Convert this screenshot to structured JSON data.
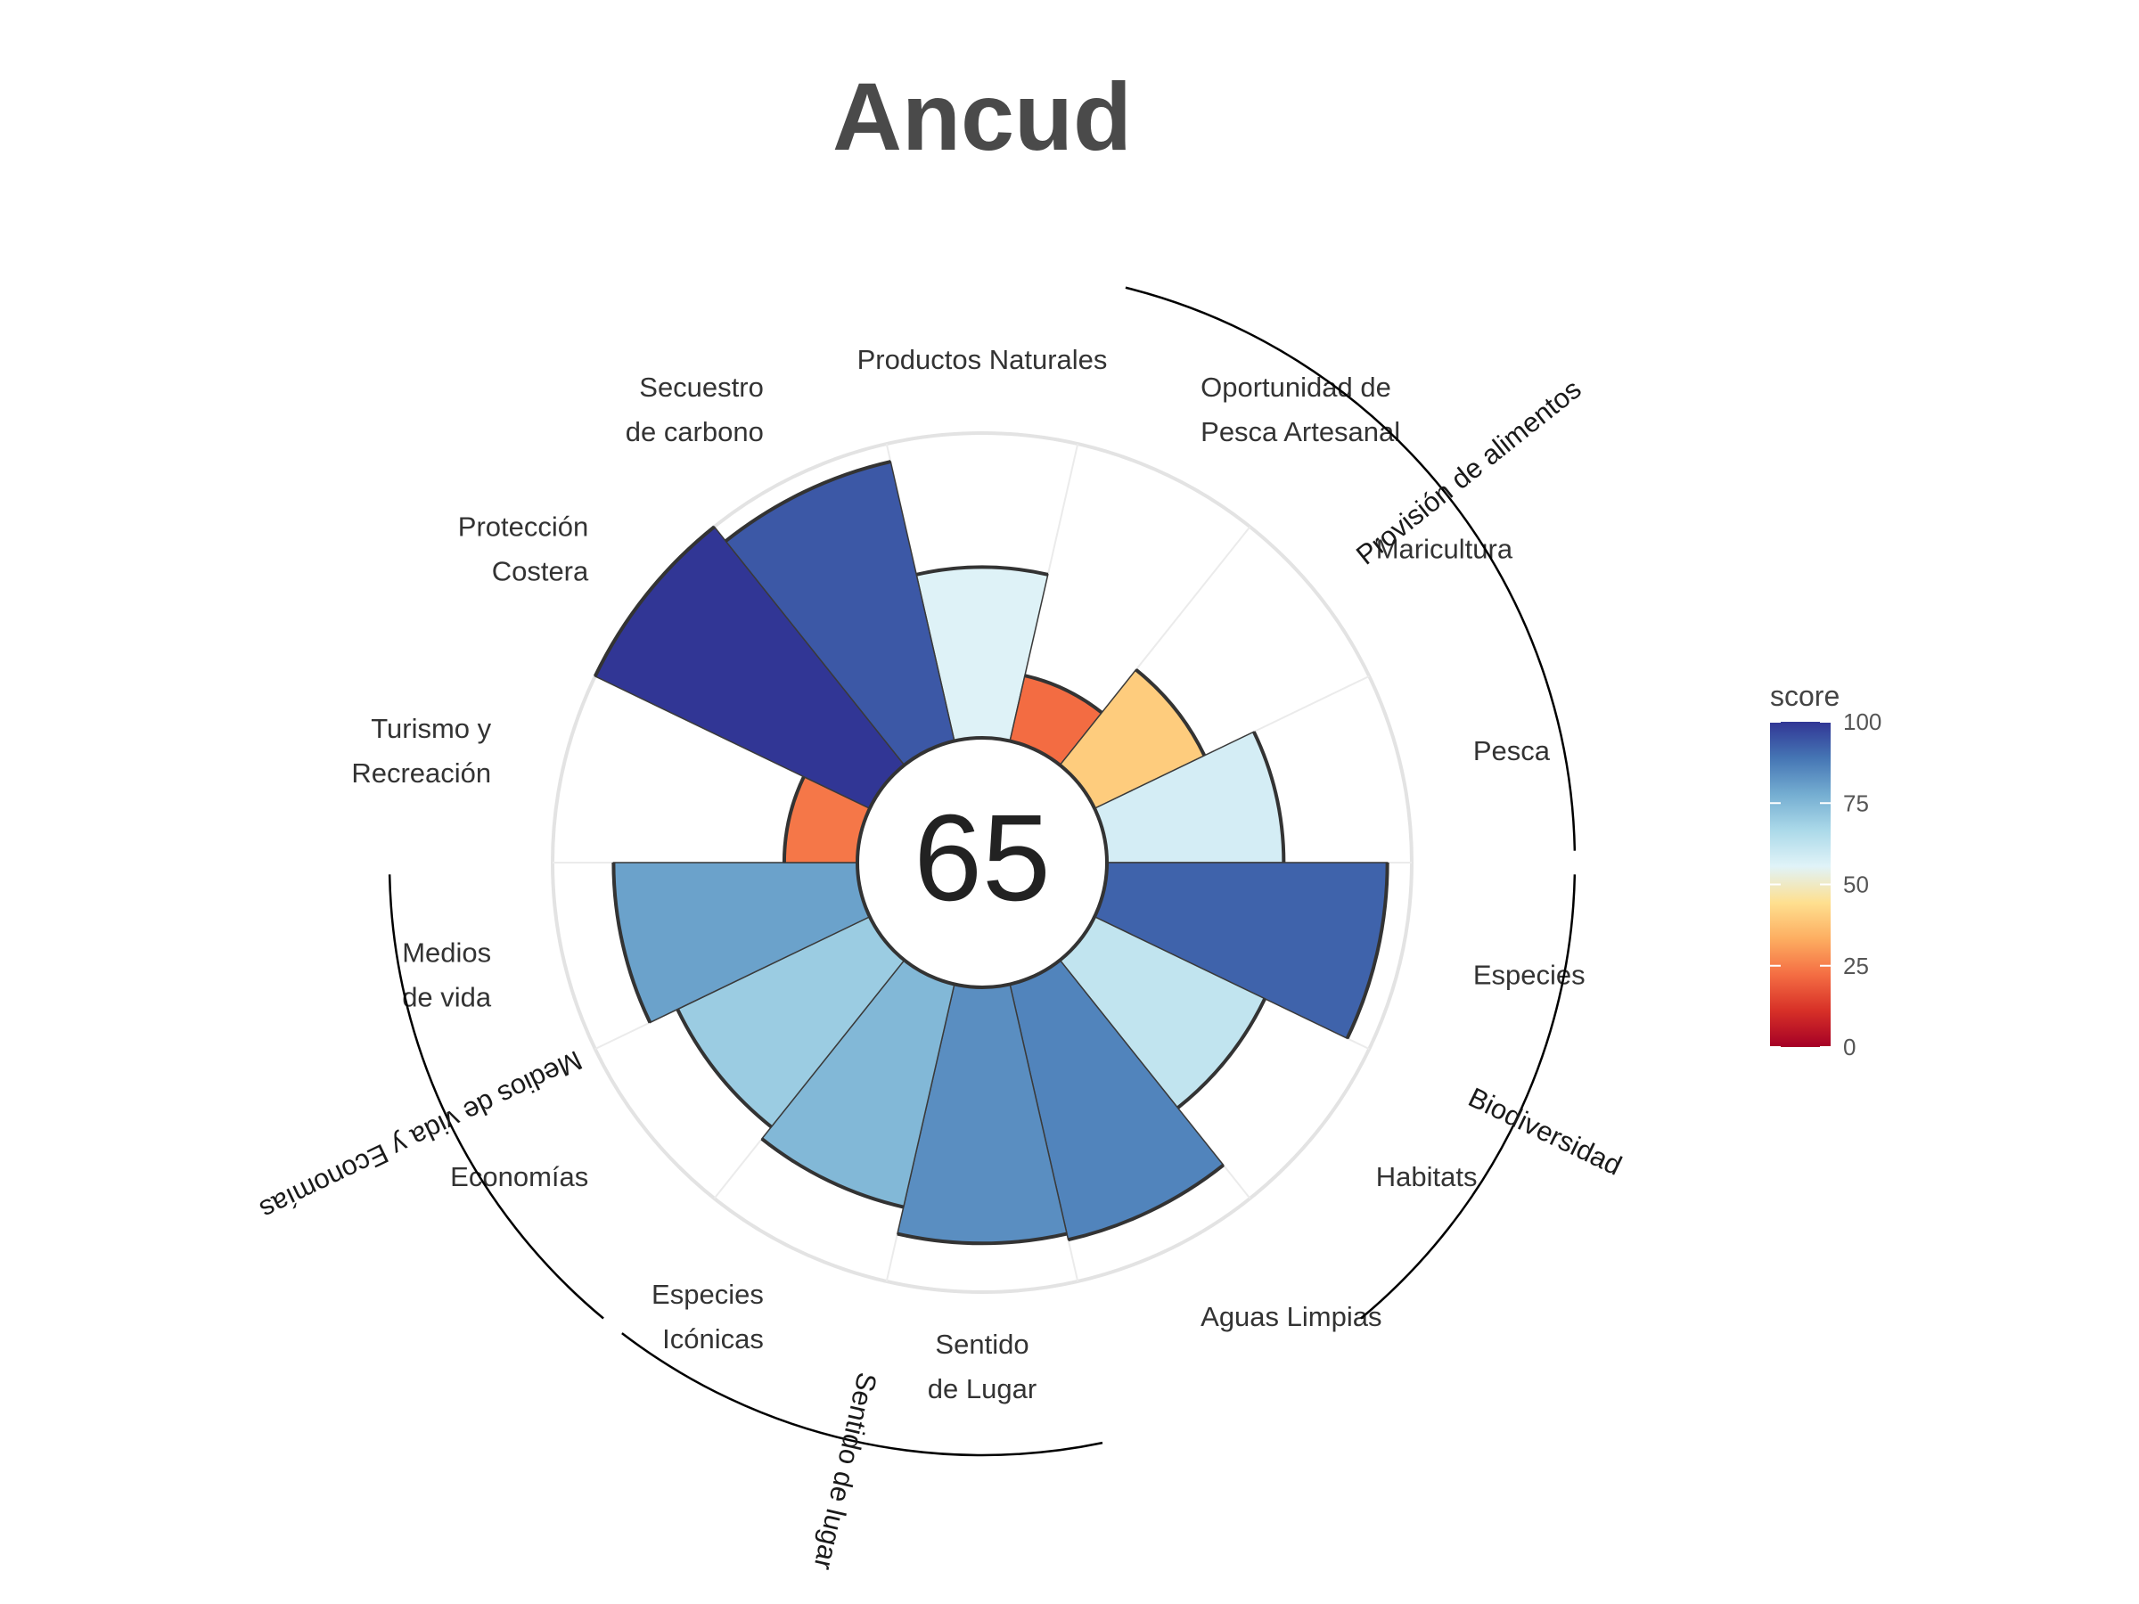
{
  "chart_data": {
    "type": "polar_bar",
    "title": "Ancud",
    "overall_score": "65",
    "ylim": [
      0,
      100
    ],
    "grid": true,
    "legend": {
      "title": "score",
      "placement": "right",
      "ticks": [
        "100",
        "75",
        "50",
        "25",
        "0"
      ],
      "colors": [
        "#A50026",
        "#D73027",
        "#F46D43",
        "#FDAE61",
        "#FEE090",
        "#E0F3F8",
        "#ABD9E9",
        "#74ADD1",
        "#4575B4",
        "#313695"
      ]
    },
    "goals": [
      {
        "label": [
          "Productos Naturales"
        ],
        "value": 56
      },
      {
        "label": [
          "Oportunidad de",
          "Pesca Artesanal"
        ],
        "value": 22
      },
      {
        "label": [
          "Maricultura"
        ],
        "value": 40
      },
      {
        "label": [
          "Pesca"
        ],
        "value": 58
      },
      {
        "label": [
          "Especies"
        ],
        "value": 92
      },
      {
        "label": [
          "Habitats"
        ],
        "value": 62
      },
      {
        "label": [
          "Aguas Limpias"
        ],
        "value": 86
      },
      {
        "label": [
          "Sentido",
          "de Lugar"
        ],
        "value": 84
      },
      {
        "label": [
          "Especies",
          "Icónicas"
        ],
        "value": 75
      },
      {
        "label": [
          "Economías"
        ],
        "value": 70
      },
      {
        "label": [
          "Medios",
          "de vida"
        ],
        "value": 80
      },
      {
        "label": [
          "Turismo y",
          "Recreación"
        ],
        "value": 24
      },
      {
        "label": [
          "Protección",
          "Costera"
        ],
        "value": 100
      },
      {
        "label": [
          "Secuestro",
          "de carbono"
        ],
        "value": 94
      }
    ],
    "groups": [
      {
        "name": "Provisión de alimentos",
        "goals": [
          1,
          2,
          3
        ]
      },
      {
        "name": "Biodiversidad",
        "goals": [
          4,
          5
        ]
      },
      {
        "name": "Sentido de lugar",
        "goals": [
          7,
          8
        ]
      },
      {
        "name": "Medios de vida y Economías",
        "goals": [
          9,
          10
        ]
      }
    ]
  }
}
